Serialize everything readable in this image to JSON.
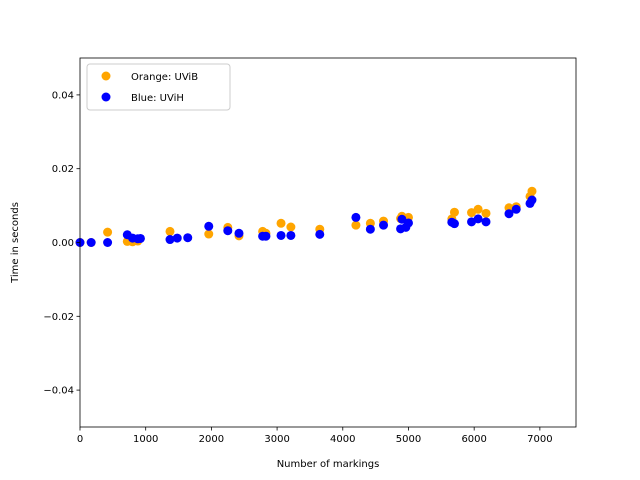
{
  "chart_data": {
    "type": "scatter",
    "title": "",
    "xlabel": "Number of markings",
    "ylabel": "Time in seconds",
    "xlim": [
      0,
      7550
    ],
    "ylim": [
      -0.05,
      0.05
    ],
    "xticks": [
      0,
      1000,
      2000,
      3000,
      4000,
      5000,
      6000,
      7000
    ],
    "yticks": [
      -0.04,
      -0.02,
      0.0,
      0.02,
      0.04
    ],
    "ytick_labels": [
      "−0.04",
      "−0.02",
      "0.00",
      "0.02",
      "0.04"
    ],
    "legend_position": "top-left",
    "series": [
      {
        "name": "Orange: UViB",
        "color": "#FFA500",
        "x": [
          0,
          170,
          420,
          720,
          800,
          880,
          1370,
          1960,
          2250,
          2420,
          2780,
          2830,
          3060,
          3210,
          3650,
          4200,
          4420,
          4620,
          4880,
          4900,
          5000,
          5660,
          5700,
          5960,
          6060,
          6180,
          6530,
          6640,
          6850,
          6880
        ],
        "y": [
          0.0,
          0.0,
          0.0028,
          0.0003,
          0.0002,
          0.0004,
          0.003,
          0.0023,
          0.0041,
          0.0018,
          0.003,
          0.0025,
          0.0052,
          0.0042,
          0.0036,
          0.0047,
          0.0052,
          0.0058,
          0.0065,
          0.0071,
          0.0068,
          0.0064,
          0.0082,
          0.0081,
          0.009,
          0.0079,
          0.0094,
          0.0097,
          0.0125,
          0.0139
        ]
      },
      {
        "name": "Blue: UViH",
        "color": "#0000FF",
        "x": [
          0,
          170,
          420,
          720,
          800,
          880,
          920,
          1370,
          1480,
          1640,
          1960,
          2250,
          2420,
          2780,
          2830,
          3060,
          3210,
          3650,
          4200,
          4420,
          4620,
          4880,
          4900,
          4960,
          5000,
          5660,
          5700,
          5960,
          6060,
          6180,
          6530,
          6640,
          6850,
          6880
        ],
        "y": [
          0.0,
          0.0,
          0.0,
          0.0021,
          0.0012,
          0.001,
          0.0011,
          0.0008,
          0.0012,
          0.0013,
          0.0044,
          0.0032,
          0.0025,
          0.0017,
          0.0017,
          0.0019,
          0.0019,
          0.0022,
          0.0068,
          0.0036,
          0.0047,
          0.0037,
          0.0063,
          0.0041,
          0.0053,
          0.0055,
          0.0051,
          0.0056,
          0.0064,
          0.0056,
          0.0078,
          0.009,
          0.0106,
          0.0115
        ]
      }
    ]
  }
}
